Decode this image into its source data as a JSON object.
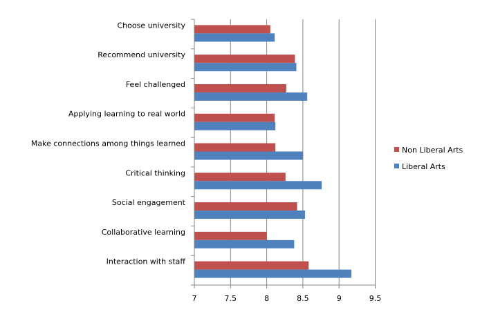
{
  "chart_data": {
    "type": "bar",
    "orientation": "horizontal",
    "categories": [
      "Choose university",
      "Recommend university",
      "Feel challenged",
      "Applying learning to real world",
      "Make connections among things learned",
      "Critical thinking",
      "Social engagement",
      "Collaborative learning",
      "Interaction with staff"
    ],
    "series": [
      {
        "name": "Non Liberal Arts",
        "color": "#c0504d",
        "values": [
          8.05,
          8.39,
          8.27,
          8.11,
          8.12,
          8.26,
          8.42,
          8.0,
          8.58
        ]
      },
      {
        "name": "Liberal Arts",
        "color": "#4f81bd",
        "values": [
          8.11,
          8.41,
          8.56,
          8.12,
          8.5,
          8.76,
          8.53,
          8.38,
          9.17
        ]
      }
    ],
    "xlim": [
      7,
      9.5
    ],
    "xticks": [
      "7",
      "7.5",
      "8",
      "8.5",
      "9",
      "9.5"
    ],
    "grid": true,
    "legend": "right",
    "title": "",
    "xlabel": "",
    "ylabel": ""
  }
}
